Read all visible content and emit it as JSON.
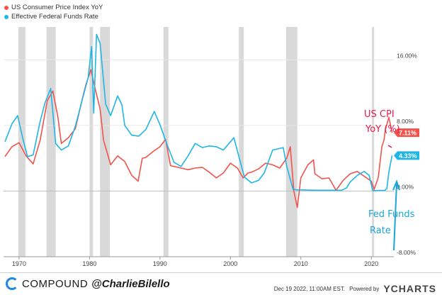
{
  "legend": {
    "cpi_label": "US Consumer Price Index YoY",
    "ff_label": "Effective Federal Funds Rate"
  },
  "colors": {
    "cpi": "#f2534c",
    "ff": "#1fb6e6",
    "recession": "#d9d9d9"
  },
  "annotations": {
    "cpi_line1": "US CPI",
    "cpi_line2": "YoY (%)",
    "ff_line1": "Fed Funds",
    "ff_line2": "Rate"
  },
  "footer": {
    "brand": "COMPOUND",
    "handle": "@CharlieBilello",
    "timestamp": "Dec 19 2022, 11:00AM EST.",
    "powered_by": "Powered by",
    "ycharts": "YCHARTS"
  },
  "chart_data": {
    "type": "line",
    "xlim": [
      1967.8,
      2023.2
    ],
    "ylim": [
      -8,
      20
    ],
    "x_ticks": [
      1970,
      1980,
      1990,
      2000,
      2010,
      2020
    ],
    "x_tick_labels": [
      "1970",
      "1980",
      "1990",
      "2000",
      "2010",
      "2020"
    ],
    "y_ticks": [
      16,
      8,
      0,
      -8
    ],
    "y_tick_labels": [
      "16.00%",
      "8.00%",
      "0.00%",
      "-8.00%"
    ],
    "end_labels": {
      "cpi": "7.11%",
      "ff": "4.33%"
    },
    "recessions": [
      [
        1969.9,
        1970.9
      ],
      [
        1973.9,
        1975.2
      ],
      [
        1980.0,
        1980.5
      ],
      [
        1981.5,
        1982.9
      ],
      [
        1990.5,
        1991.2
      ],
      [
        2001.2,
        2001.9
      ],
      [
        2007.9,
        2009.5
      ],
      [
        2020.1,
        2020.4
      ]
    ],
    "series": [
      {
        "name": "US Consumer Price Index YoY",
        "x": [
          1968,
          1969,
          1970,
          1971,
          1972,
          1973,
          1974,
          1974.8,
          1975.5,
          1976,
          1977,
          1978,
          1979,
          1979.5,
          1980.2,
          1980.8,
          1981.5,
          1982,
          1983,
          1984,
          1985,
          1986,
          1986.9,
          1987.5,
          1988,
          1989,
          1990,
          1990.8,
          1991.5,
          1992,
          1993,
          1994,
          1995,
          1996,
          1997,
          1998,
          1999,
          2000,
          2001,
          2001.8,
          2002.5,
          2003,
          2004,
          2005,
          2006,
          2007,
          2008,
          2008.5,
          2009,
          2009.5,
          2010,
          2011,
          2011.8,
          2012,
          2013,
          2014,
          2015,
          2016,
          2017,
          2018,
          2019,
          2020,
          2020.4,
          2020.9,
          2021,
          2021.5,
          2021.8,
          2022,
          2022.5,
          2022.95
        ],
        "values": [
          4.2,
          5.4,
          5.9,
          4.3,
          3.3,
          6.2,
          11.0,
          12.2,
          9.1,
          5.8,
          6.5,
          7.6,
          11.3,
          13.0,
          14.8,
          12.5,
          10.0,
          6.2,
          3.2,
          4.3,
          3.6,
          1.9,
          1.2,
          4.0,
          4.1,
          4.8,
          5.4,
          6.3,
          3.1,
          3.0,
          2.8,
          2.6,
          2.8,
          2.9,
          2.3,
          1.6,
          2.2,
          3.4,
          2.8,
          1.6,
          2.2,
          2.3,
          2.7,
          3.4,
          3.2,
          2.8,
          4.0,
          5.4,
          0.0,
          -2.0,
          1.6,
          3.2,
          3.8,
          2.1,
          1.5,
          1.6,
          0.1,
          1.3,
          2.1,
          2.4,
          1.8,
          1.2,
          0.2,
          1.4,
          1.7,
          5.4,
          6.2,
          7.5,
          9.0,
          7.11
        ]
      },
      {
        "name": "Effective Federal Funds Rate",
        "x": [
          1968,
          1969,
          1969.8,
          1970.5,
          1971.2,
          1972,
          1973,
          1973.7,
          1974.5,
          1975.2,
          1976,
          1977,
          1978,
          1979,
          1979.8,
          1980.3,
          1980.6,
          1981,
          1981.5,
          1982.3,
          1983,
          1984,
          1984.6,
          1985,
          1986,
          1987,
          1988,
          1989.2,
          1990,
          1991,
          1992,
          1993,
          1994,
          1995,
          1996,
          1997,
          1998,
          1999,
          2000.5,
          2001.3,
          2002,
          2003,
          2004,
          2004.8,
          2006,
          2007.5,
          2008,
          2008.9,
          2009.5,
          2012,
          2015.8,
          2016.5,
          2017,
          2018,
          2019,
          2019.7,
          2020.2,
          2021,
          2021.9,
          2022.2,
          2022.5,
          2022.95
        ],
        "values": [
          6.0,
          8.2,
          9.2,
          6.5,
          4.2,
          4.4,
          8.5,
          10.8,
          12.5,
          5.8,
          5.0,
          5.5,
          7.9,
          11.2,
          13.8,
          17.6,
          9.5,
          19.1,
          18.0,
          10.6,
          9.2,
          11.6,
          10.5,
          8.0,
          6.8,
          6.7,
          7.5,
          9.7,
          8.1,
          5.7,
          3.5,
          3.0,
          4.3,
          5.8,
          5.3,
          5.5,
          5.4,
          5.0,
          6.5,
          3.9,
          1.7,
          1.0,
          1.3,
          2.2,
          5.0,
          5.3,
          3.0,
          0.2,
          0.15,
          0.1,
          0.1,
          0.4,
          1.1,
          1.9,
          2.4,
          1.9,
          0.05,
          0.08,
          0.08,
          0.3,
          2.3,
          4.33
        ]
      }
    ]
  }
}
